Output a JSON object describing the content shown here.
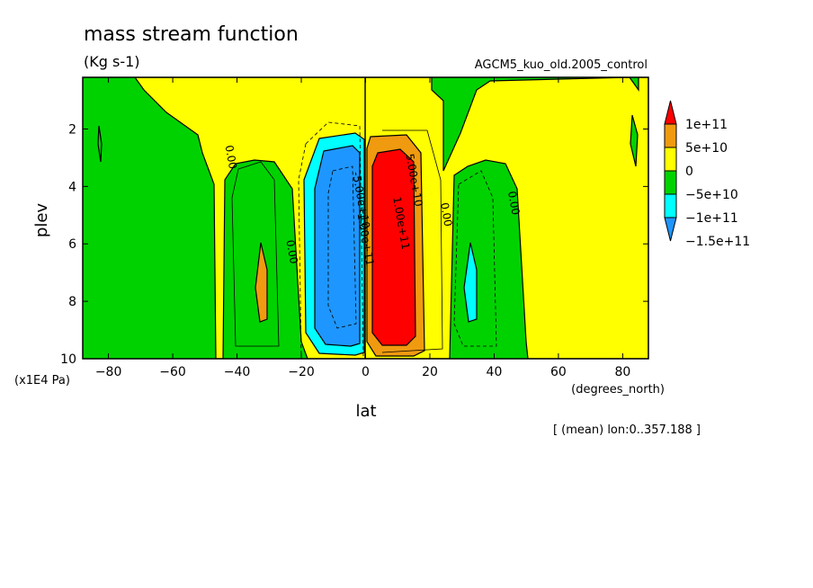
{
  "chart_data": {
    "type": "filled-contour",
    "title": "mass stream function",
    "units": "(Kg s-1)",
    "dataset": "AGCM5_kuo_old.2005_control",
    "xlabel": "lat",
    "ylabel": "plev",
    "x_units": "(degrees_north)",
    "y_units": "(x1E4 Pa)",
    "footnote": "[ (mean) lon:0..357.188 ]",
    "xlim": [
      -88,
      88
    ],
    "ylim": [
      10,
      0.2
    ],
    "xticks": [
      -80,
      -60,
      -40,
      -20,
      0,
      20,
      40,
      60,
      80
    ],
    "yticks": [
      2,
      4,
      6,
      8,
      10
    ],
    "xtick_labels": [
      "−80",
      "−60",
      "−40",
      "−20",
      "0",
      "20",
      "40",
      "60",
      "80"
    ],
    "ytick_labels": [
      "2",
      "4",
      "6",
      "8",
      "10"
    ],
    "legend": {
      "position": "right",
      "levels": [
        {
          "label": "1e+11",
          "color": "#ff0000"
        },
        {
          "label": "5e+10",
          "color": "#f09a10"
        },
        {
          "label": "0",
          "color": "#ffff00"
        },
        {
          "label": "−5e+10",
          "color": "#00d200"
        },
        {
          "label": "−1e+11",
          "color": "#00ffff"
        },
        {
          "label": "−1.5e+11",
          "color": "#1e96ff"
        }
      ]
    },
    "contour_labels": [
      {
        "text": "0.00",
        "x": -43,
        "y": 3.0
      },
      {
        "text": "0.00",
        "x": -24,
        "y": 6.3
      },
      {
        "text": "-5.00e+10",
        "x": -2.5,
        "y": 4.5
      },
      {
        "text": "-1.00e+11",
        "x": -1.2,
        "y": 5.8
      },
      {
        "text": "5.00e+10",
        "x": 14,
        "y": 3.8
      },
      {
        "text": "1.00e+11",
        "x": 10,
        "y": 5.3
      },
      {
        "text": "0.00",
        "x": 24,
        "y": 5.0
      },
      {
        "text": "0.00",
        "x": 45,
        "y": 4.6
      }
    ],
    "regions": [
      {
        "name": "north-polar-green",
        "color": "#00d200"
      },
      {
        "name": "north-cell-yellow",
        "color": "#ffff00"
      },
      {
        "name": "north-cyan-core",
        "color": "#00ffff",
        "lat": 33,
        "plev": 7.5
      },
      {
        "name": "hadley-cell-north",
        "color": "#ff0000",
        "lat": 8,
        "plev": 6.0
      },
      {
        "name": "hadley-cell-south",
        "color": "#1e96ff",
        "lat": -7,
        "plev": 6.0
      },
      {
        "name": "south-polar-green",
        "color": "#00d200"
      },
      {
        "name": "south-cell-yellow",
        "color": "#ffff00"
      },
      {
        "name": "south-orange-core",
        "color": "#f09a10",
        "lat": -33,
        "plev": 7.5
      }
    ]
  }
}
